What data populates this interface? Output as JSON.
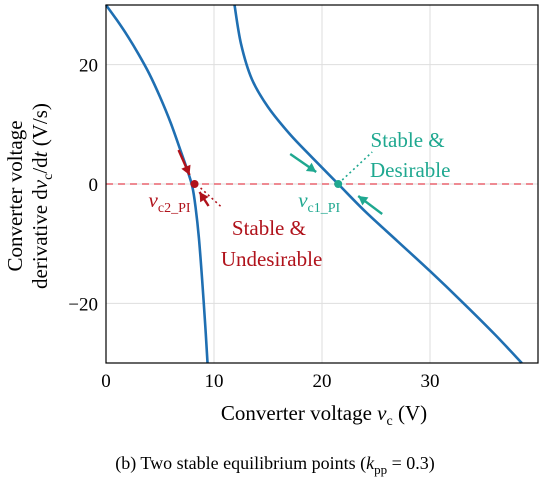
{
  "chart_data": {
    "type": "line",
    "xlim": [
      0,
      40
    ],
    "ylim": [
      -30,
      30
    ],
    "x_ticks": [
      0,
      10,
      20,
      30
    ],
    "x_tick_labels": [
      "0",
      "10",
      "20",
      "30"
    ],
    "y_ticks": [
      20,
      0,
      -20
    ],
    "y_tick_labels": [
      "20",
      "0",
      "−20"
    ],
    "grid": true,
    "xlabel": {
      "main": "Converter voltage ",
      "var": "v",
      "sub": "c",
      "unit": " (V)"
    },
    "ylabel": {
      "line1": "Converter voltage",
      "line2_a": "derivative d",
      "line2_var": "v",
      "line2_sub": "c",
      "line2_b": "/d",
      "line2_t": "t",
      "line2_unit": " (V/s)"
    },
    "caption": {
      "prefix": "(b) Two stable equilibrium points (",
      "var": "k",
      "sub": "pp",
      "suffix": " = 0.3)"
    },
    "series": [
      {
        "color": "#1f6fb2",
        "x": [
          0,
          1,
          2,
          3,
          4,
          5,
          6,
          7,
          7.5,
          8,
          8.3,
          8.6,
          8.9,
          9.2,
          9.4
        ],
        "y": [
          30,
          27.5,
          24.8,
          21.8,
          18.5,
          14.6,
          10.2,
          5.1,
          2.5,
          -0.5,
          -4,
          -9,
          -16,
          -24,
          -30
        ]
      },
      {
        "color": "#1f6fb2",
        "x": [
          11.9,
          12.5,
          13.5,
          15,
          17,
          19,
          21.5,
          24,
          27,
          30,
          33,
          36,
          38.5
        ],
        "y": [
          30,
          23.5,
          17.6,
          12.9,
          8.4,
          4.6,
          0,
          -4.6,
          -9.6,
          -14.6,
          -19.8,
          -25.2,
          -30
        ]
      }
    ],
    "zero_line": {
      "y": 0,
      "color": "#e8646e"
    },
    "equilibria": [
      {
        "x": 8.2,
        "y": 0,
        "label_var": "v",
        "label_sub": "c2_PI",
        "color": "#b0121b"
      },
      {
        "x": 21.5,
        "y": 0,
        "label_var": "v",
        "label_sub": "c1_PI",
        "color": "#1fa890"
      }
    ],
    "annotations": [
      {
        "line1": "Stable &",
        "line2": "Undesirable",
        "color": "#b0121b"
      },
      {
        "line1": "Stable &",
        "line2": "Desirable",
        "color": "#1fa890"
      }
    ]
  }
}
